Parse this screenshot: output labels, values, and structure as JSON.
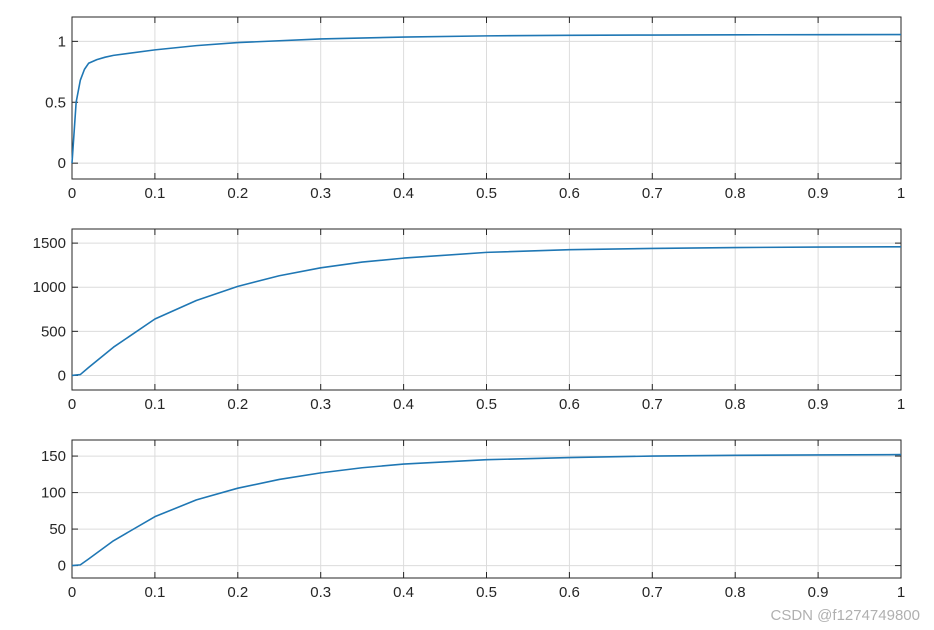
{
  "watermark": "CSDN @f1274749800",
  "colors": {
    "line": "#1f77b4",
    "grid": "#dcdcdc",
    "axis": "#262626"
  },
  "chart_data": [
    {
      "type": "line",
      "title": "",
      "xlabel": "",
      "ylabel": "",
      "xlim": [
        0,
        1
      ],
      "ylim": [
        -0.13,
        1.2
      ],
      "xticks": [
        0,
        0.1,
        0.2,
        0.3,
        0.4,
        0.5,
        0.6,
        0.7,
        0.8,
        0.9,
        1
      ],
      "xtick_labels": [
        "0",
        "0.1",
        "0.2",
        "0.3",
        "0.4",
        "0.5",
        "0.6",
        "0.7",
        "0.8",
        "0.9",
        "1"
      ],
      "yticks": [
        0,
        0.5,
        1
      ],
      "ytick_labels": [
        "0",
        "0.5",
        "1"
      ],
      "grid": true,
      "series": [
        {
          "x": [
            0,
            0.005,
            0.01,
            0.015,
            0.02,
            0.03,
            0.04,
            0.05,
            0.1,
            0.15,
            0.2,
            0.3,
            0.4,
            0.5,
            0.6,
            0.7,
            0.8,
            0.9,
            1.0
          ],
          "y": [
            0.0,
            0.5,
            0.68,
            0.77,
            0.82,
            0.85,
            0.87,
            0.885,
            0.93,
            0.965,
            0.99,
            1.02,
            1.035,
            1.045,
            1.05,
            1.052,
            1.054,
            1.055,
            1.056
          ]
        }
      ]
    },
    {
      "type": "line",
      "title": "",
      "xlabel": "",
      "ylabel": "",
      "xlim": [
        0,
        1
      ],
      "ylim": [
        -165,
        1660
      ],
      "xticks": [
        0,
        0.1,
        0.2,
        0.3,
        0.4,
        0.5,
        0.6,
        0.7,
        0.8,
        0.9,
        1
      ],
      "xtick_labels": [
        "0",
        "0.1",
        "0.2",
        "0.3",
        "0.4",
        "0.5",
        "0.6",
        "0.7",
        "0.8",
        "0.9",
        "1"
      ],
      "yticks": [
        0,
        500,
        1000,
        1500
      ],
      "ytick_labels": [
        "0",
        "500",
        "1000",
        "1500"
      ],
      "grid": true,
      "series": [
        {
          "x": [
            0,
            0.01,
            0.02,
            0.05,
            0.1,
            0.15,
            0.2,
            0.25,
            0.3,
            0.35,
            0.4,
            0.5,
            0.6,
            0.7,
            0.8,
            0.9,
            1.0
          ],
          "y": [
            0,
            10,
            90,
            320,
            640,
            850,
            1010,
            1130,
            1220,
            1285,
            1330,
            1395,
            1425,
            1440,
            1450,
            1455,
            1458
          ]
        }
      ]
    },
    {
      "type": "line",
      "title": "",
      "xlabel": "",
      "ylabel": "",
      "xlim": [
        0,
        1
      ],
      "ylim": [
        -17,
        172
      ],
      "xticks": [
        0,
        0.1,
        0.2,
        0.3,
        0.4,
        0.5,
        0.6,
        0.7,
        0.8,
        0.9,
        1
      ],
      "xtick_labels": [
        "0",
        "0.1",
        "0.2",
        "0.3",
        "0.4",
        "0.5",
        "0.6",
        "0.7",
        "0.8",
        "0.9",
        "1"
      ],
      "yticks": [
        0,
        50,
        100,
        150
      ],
      "ytick_labels": [
        "0",
        "50",
        "100",
        "150"
      ],
      "grid": true,
      "series": [
        {
          "x": [
            0,
            0.01,
            0.02,
            0.05,
            0.1,
            0.15,
            0.2,
            0.25,
            0.3,
            0.35,
            0.4,
            0.5,
            0.6,
            0.7,
            0.8,
            0.9,
            1.0
          ],
          "y": [
            0,
            1,
            9,
            34,
            67,
            90,
            106,
            118,
            127,
            134,
            139,
            145,
            148,
            150,
            151,
            151.5,
            152
          ]
        }
      ]
    }
  ]
}
